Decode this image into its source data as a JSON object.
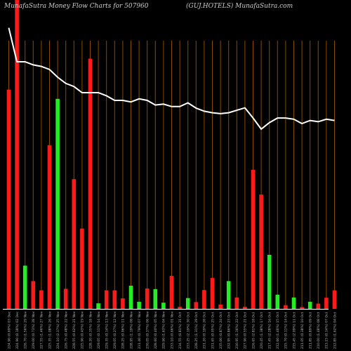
{
  "header": {
    "left": "MunafaSutra  Money Flow  Charts for 507960",
    "right": "(GUJ.HOTELS) MunafaSutra.com"
  },
  "colors": {
    "background": "#000000",
    "gridline": "#8a4a00",
    "bar_up": "#22ee22",
    "bar_down": "#ff1a1a",
    "line": "#ffffff",
    "baseline": "#ffffff",
    "label": "#bbbbbb"
  },
  "chart_data": {
    "type": "bar",
    "title": "",
    "ylim": [
      0,
      100
    ],
    "grid": "vertical",
    "categories": [
      "224.90 (0.69%) 03 Dec",
      "224.90 (0.18%) 02 Dec",
      "226.70 (1.56%) 29 Nov",
      "229.00 (0.73%) 28 Nov",
      "227.55 (1.46%) 27 Nov",
      "225.35 (1.08%) 26 Nov",
      "224.10 (2.37%) 25 Nov",
      "226.75 (0.48%) 22 Nov",
      "228.55 (0.62%) 21 Nov",
      "225.90 (0.43%) 19 Nov",
      "228.20 (0.35%) 18 Nov",
      "229.05 (0.11%) 14 Nov",
      "229.35 (0.14%) 13 Nov",
      "229.05 (0.27%) 12 Nov",
      "228.25 (0.96%) 11 Nov",
      "228.95 (1.19%) 08 Nov",
      "231.40 (0.79%) 07 Nov",
      "230.05 (0.37%) 06 Nov",
      "228.60 (0.40%) 05 Nov",
      "229.90 (1.63%) 04 Nov",
      "233.10 (0.66%) 01 Nov",
      "234.55 (0.81%) 31 Oct",
      "233.25 (2.19%) 30 Oct",
      "228.25 (1.31%) 29 Oct",
      "231.20 (0.19%) 28 Oct",
      "231.65 (0.05%) 25 Oct",
      "235.00 (0.87%) 24 Oct",
      "232.95 (0.86%) 23 Oct",
      "230.95 (1.36%) 22 Oct",
      "227.90 (0.55%) 21 Oct",
      "226.65 (2.81%) 18 Oct",
      "220.45 (1.38%) 17 Oct",
      "217.45 (2.28%) 16 Oct",
      "212.60 (1.46%) 15 Oct",
      "215.70 (0.11%) 14 Oct",
      "215.45 (2.09%) 11 Oct",
      "211.05 (0.38%) 10 Oct",
      "211.85 (0.89%) 09 Oct",
      "210.00 (1.48%) 08 Oct",
      "213.15 (0.14%) 07 Oct",
      "212.85 (1.62%) 04 Oct"
    ],
    "series": [
      {
        "values": [
          {
            "v": 71,
            "dir": "down"
          },
          {
            "v": 100,
            "dir": "down"
          },
          {
            "v": 14,
            "dir": "up"
          },
          {
            "v": 9,
            "dir": "down"
          },
          {
            "v": 6,
            "dir": "down"
          },
          {
            "v": 53,
            "dir": "down"
          },
          {
            "v": 68,
            "dir": "up"
          },
          {
            "v": 6.5,
            "dir": "down"
          },
          {
            "v": 42,
            "dir": "down"
          },
          {
            "v": 26,
            "dir": "down"
          },
          {
            "v": 81,
            "dir": "down"
          },
          {
            "v": 1.8,
            "dir": "up"
          },
          {
            "v": 6,
            "dir": "down"
          },
          {
            "v": 6,
            "dir": "down"
          },
          {
            "v": 3.4,
            "dir": "down"
          },
          {
            "v": 7.5,
            "dir": "up"
          },
          {
            "v": 2.3,
            "dir": "up"
          },
          {
            "v": 6.6,
            "dir": "down"
          },
          {
            "v": 6.4,
            "dir": "up"
          },
          {
            "v": 2.0,
            "dir": "up"
          },
          {
            "v": 10.7,
            "dir": "down"
          },
          {
            "v": 0.7,
            "dir": "down"
          },
          {
            "v": 3.5,
            "dir": "up"
          },
          {
            "v": 2.2,
            "dir": "down"
          },
          {
            "v": 6.1,
            "dir": "down"
          },
          {
            "v": 10.0,
            "dir": "down"
          },
          {
            "v": 1.4,
            "dir": "down"
          },
          {
            "v": 9.0,
            "dir": "up"
          },
          {
            "v": 3.7,
            "dir": "down"
          },
          {
            "v": 0.7,
            "dir": "down"
          },
          {
            "v": 45,
            "dir": "down"
          },
          {
            "v": 37,
            "dir": "down"
          },
          {
            "v": 17.5,
            "dir": "up"
          },
          {
            "v": 4.6,
            "dir": "up"
          },
          {
            "v": 1.2,
            "dir": "down"
          },
          {
            "v": 3.7,
            "dir": "up"
          },
          {
            "v": 0.6,
            "dir": "down"
          },
          {
            "v": 2.3,
            "dir": "up"
          },
          {
            "v": 1.7,
            "dir": "down"
          },
          {
            "v": 3.6,
            "dir": "down"
          },
          {
            "v": 6.0,
            "dir": "down"
          }
        ]
      },
      {
        "type": "line",
        "values": [
          91,
          80,
          80,
          79,
          78.5,
          77.5,
          75,
          73,
          72,
          70,
          70,
          70,
          69,
          67.5,
          67.5,
          67,
          68,
          67.5,
          66,
          66.3,
          65.5,
          65.5,
          66.7,
          65,
          64,
          63.5,
          63.2,
          63.5,
          64.3,
          65.1,
          61.8,
          58.2,
          60.3,
          61.8,
          61.8,
          61.4,
          60.0,
          61.0,
          60.6,
          61.4,
          61.0
        ]
      }
    ]
  }
}
